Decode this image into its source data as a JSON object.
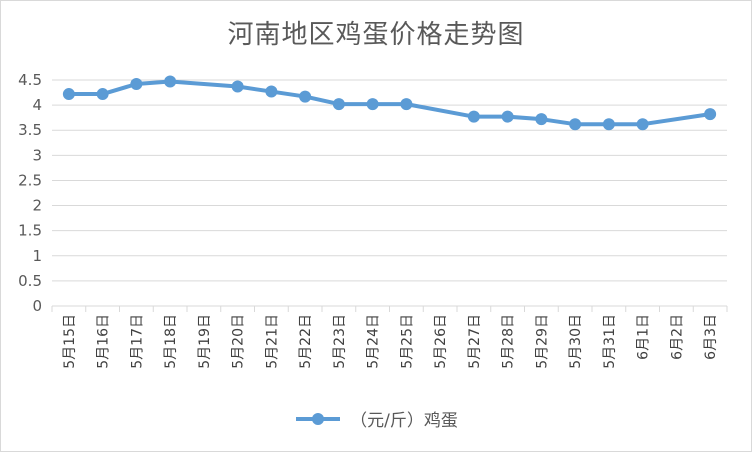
{
  "chart_data": {
    "type": "line",
    "title": "河南地区鸡蛋价格走势图",
    "categories": [
      "5月15日",
      "5月16日",
      "5月17日",
      "5月18日",
      "5月19日",
      "5月20日",
      "5月21日",
      "5月22日",
      "5月23日",
      "5月24日",
      "5月25日",
      "5月26日",
      "5月27日",
      "5月28日",
      "5月29日",
      "5月30日",
      "5月31日",
      "6月1日",
      "6月2日",
      "6月3日"
    ],
    "series": [
      {
        "name": "（元/斤）鸡蛋",
        "color": "#5b9bd5",
        "values": [
          4.22,
          4.22,
          4.42,
          4.47,
          null,
          4.37,
          4.27,
          4.17,
          4.02,
          4.02,
          4.02,
          null,
          3.77,
          3.77,
          3.72,
          3.62,
          3.62,
          3.62,
          null,
          3.82
        ]
      }
    ],
    "ylim": [
      0,
      4.5
    ],
    "yticks": [
      "0",
      "0.5",
      "1",
      "1.5",
      "2",
      "2.5",
      "3",
      "3.5",
      "4",
      "4.5"
    ],
    "xlabel": "",
    "ylabel": "",
    "grid": true,
    "legend_position": "bottom"
  }
}
